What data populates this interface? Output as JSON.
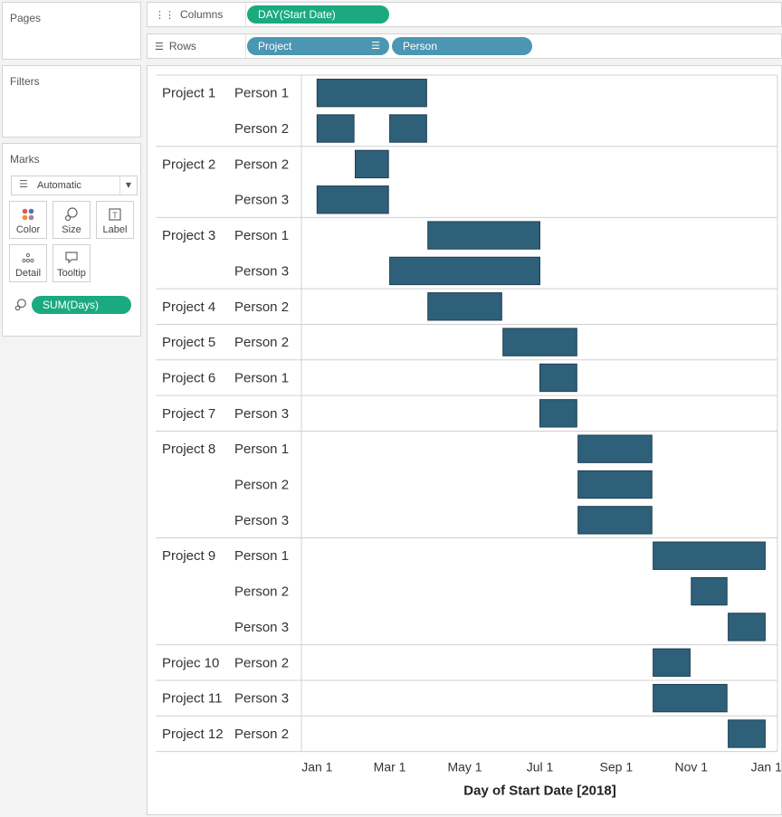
{
  "cards": {
    "pages_title": "Pages",
    "filters_title": "Filters",
    "marks_title": "Marks"
  },
  "shelves": {
    "columns_label": "Columns",
    "columns_icon": "columns-icon",
    "columns_pills": [
      "DAY(Start Date)"
    ],
    "rows_label": "Rows",
    "rows_icon": "rows-icon",
    "rows_pills": [
      "Project",
      "Person"
    ]
  },
  "marks": {
    "type_label": "Automatic",
    "buttons": [
      {
        "label": "Color",
        "icon": "color-dots-icon"
      },
      {
        "label": "Size",
        "icon": "size-icon"
      },
      {
        "label": "Label",
        "icon": "label-icon"
      },
      {
        "label": "Detail",
        "icon": "detail-icon"
      },
      {
        "label": "Tooltip",
        "icon": "tooltip-icon"
      }
    ],
    "size_pill": "SUM(Days)",
    "size_pill_icon": "size-icon"
  },
  "colors": {
    "bar": "#2f6079",
    "green_pill": "#1aaa7e",
    "blue_pill": "#4b97b3"
  },
  "chart_data": {
    "type": "bar",
    "subtype": "gantt",
    "xlabel": "Day of Start Date [2018]",
    "x_ticks": [
      "Jan 1",
      "Mar 1",
      "May 1",
      "Jul 1",
      "Sep 1",
      "Nov 1",
      "Jan 1"
    ],
    "x_tick_dates": [
      "2018-01-01",
      "2018-03-01",
      "2018-05-01",
      "2018-07-01",
      "2018-09-01",
      "2018-11-01",
      "2019-01-01"
    ],
    "xlim": [
      "2017-12-20",
      "2019-01-10"
    ],
    "groups": [
      {
        "project": "Project 1",
        "rows": [
          {
            "person": "Person 1",
            "bars": [
              {
                "start": "2018-01-01",
                "end": "2018-03-31"
              }
            ]
          },
          {
            "person": "Person 2",
            "bars": [
              {
                "start": "2018-01-01",
                "end": "2018-01-31"
              },
              {
                "start": "2018-03-01",
                "end": "2018-03-31"
              }
            ]
          }
        ]
      },
      {
        "project": "Project 2",
        "rows": [
          {
            "person": "Person 2",
            "bars": [
              {
                "start": "2018-02-01",
                "end": "2018-02-28"
              }
            ]
          },
          {
            "person": "Person 3",
            "bars": [
              {
                "start": "2018-01-01",
                "end": "2018-02-28"
              }
            ]
          }
        ]
      },
      {
        "project": "Project 3",
        "rows": [
          {
            "person": "Person 1",
            "bars": [
              {
                "start": "2018-04-01",
                "end": "2018-07-01"
              }
            ]
          },
          {
            "person": "Person 3",
            "bars": [
              {
                "start": "2018-03-01",
                "end": "2018-07-01"
              }
            ]
          }
        ]
      },
      {
        "project": "Project 4",
        "rows": [
          {
            "person": "Person 2",
            "bars": [
              {
                "start": "2018-04-01",
                "end": "2018-05-31"
              }
            ]
          }
        ]
      },
      {
        "project": "Project 5",
        "rows": [
          {
            "person": "Person 2",
            "bars": [
              {
                "start": "2018-06-01",
                "end": "2018-07-31"
              }
            ]
          }
        ]
      },
      {
        "project": "Project 6",
        "rows": [
          {
            "person": "Person 1",
            "bars": [
              {
                "start": "2018-07-01",
                "end": "2018-07-31"
              }
            ]
          }
        ]
      },
      {
        "project": "Project 7",
        "rows": [
          {
            "person": "Person 3",
            "bars": [
              {
                "start": "2018-07-01",
                "end": "2018-07-31"
              }
            ]
          }
        ]
      },
      {
        "project": "Project 8",
        "rows": [
          {
            "person": "Person 1",
            "bars": [
              {
                "start": "2018-08-01",
                "end": "2018-09-30"
              }
            ]
          },
          {
            "person": "Person 2",
            "bars": [
              {
                "start": "2018-08-01",
                "end": "2018-09-30"
              }
            ]
          },
          {
            "person": "Person 3",
            "bars": [
              {
                "start": "2018-08-01",
                "end": "2018-09-30"
              }
            ]
          }
        ]
      },
      {
        "project": "Project 9",
        "rows": [
          {
            "person": "Person 1",
            "bars": [
              {
                "start": "2018-10-01",
                "end": "2018-12-31"
              }
            ]
          },
          {
            "person": "Person 2",
            "bars": [
              {
                "start": "2018-11-01",
                "end": "2018-11-30"
              }
            ]
          },
          {
            "person": "Person 3",
            "bars": [
              {
                "start": "2018-12-01",
                "end": "2018-12-31"
              }
            ]
          }
        ]
      },
      {
        "project": "Projec 10",
        "rows": [
          {
            "person": "Person 2",
            "bars": [
              {
                "start": "2018-10-01",
                "end": "2018-10-31"
              }
            ]
          }
        ]
      },
      {
        "project": "Project 11",
        "rows": [
          {
            "person": "Person 3",
            "bars": [
              {
                "start": "2018-10-01",
                "end": "2018-11-30"
              }
            ]
          }
        ]
      },
      {
        "project": "Project 12",
        "rows": [
          {
            "person": "Person 2",
            "bars": [
              {
                "start": "2018-12-01",
                "end": "2018-12-31"
              }
            ]
          }
        ]
      }
    ]
  }
}
